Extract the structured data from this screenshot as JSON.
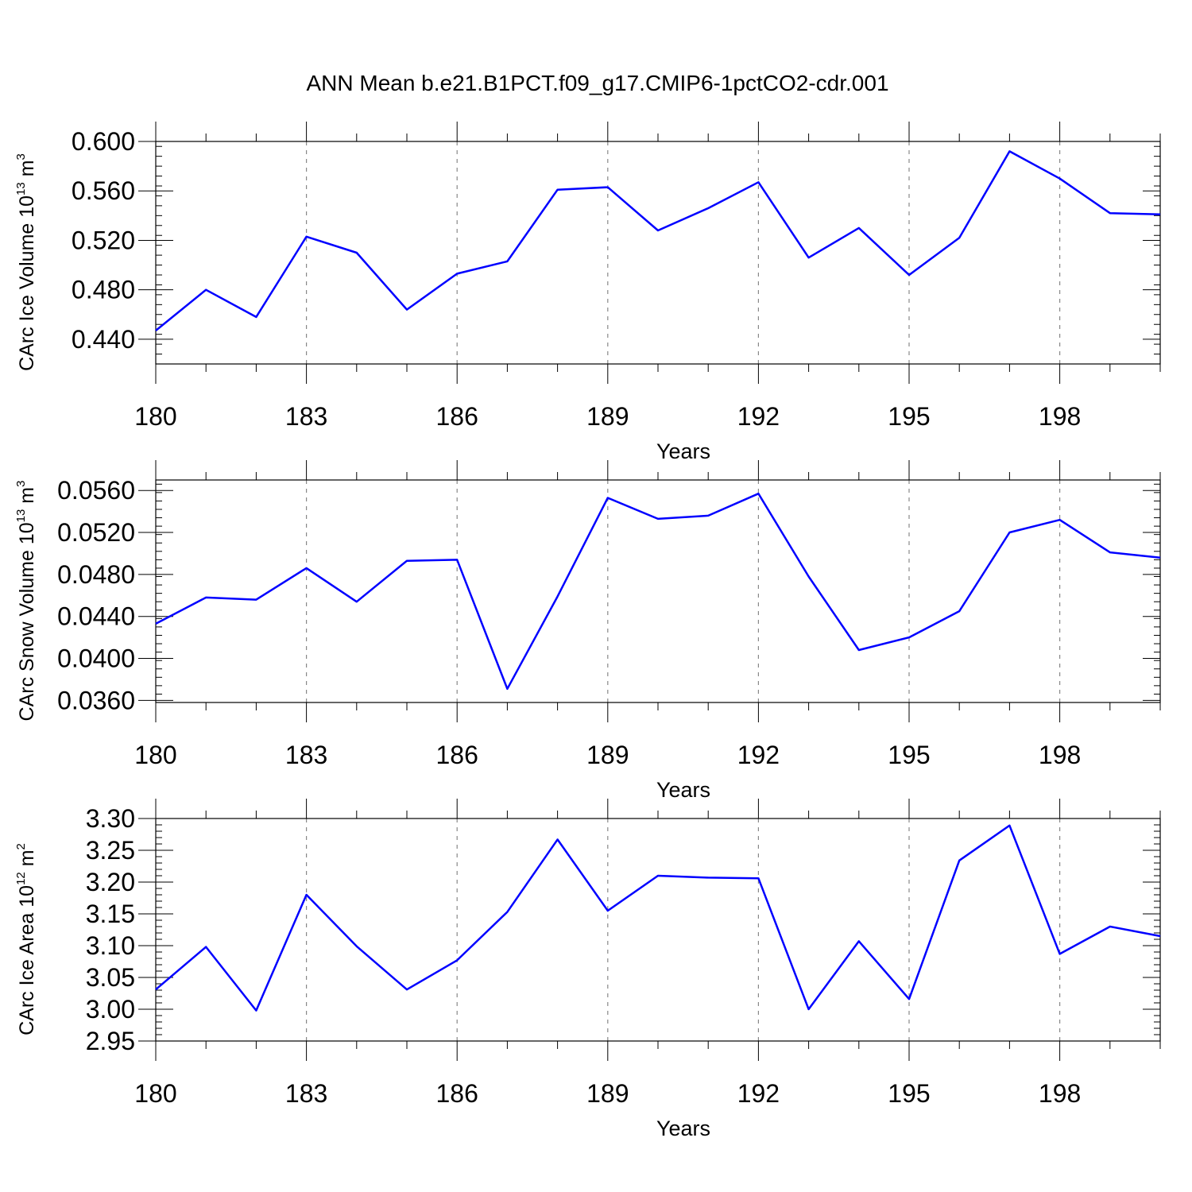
{
  "title": "ANN Mean b.e21.B1PCT.f09_g17.CMIP6-1pctCO2-cdr.001",
  "colors": {
    "series": "#0000ff",
    "grid": "#888888"
  },
  "chart_data": [
    {
      "type": "line",
      "xlabel": "Years",
      "ylabel": {
        "main": "CArc Ice Volume 10",
        "sup1": "13",
        "mid": " m",
        "sup2": "3"
      },
      "xlim": [
        180,
        200
      ],
      "ylim": [
        0.42,
        0.6
      ],
      "yticks": [
        0.44,
        0.48,
        0.52,
        0.56,
        0.6
      ],
      "ytick_labels": [
        "0.440",
        "0.480",
        "0.520",
        "0.560",
        "0.600"
      ],
      "y_minor_step": 0.008,
      "xticks": [
        180,
        183,
        186,
        189,
        192,
        195,
        198
      ],
      "xtick_labels": [
        "180",
        "183",
        "186",
        "189",
        "192",
        "195",
        "198"
      ],
      "grid": "vertical-dashed-at-major-x",
      "series": [
        {
          "x": [
            180,
            181,
            182,
            183,
            184,
            185,
            186,
            187,
            188,
            189,
            190,
            191,
            192,
            193,
            194,
            195,
            196,
            197,
            198,
            199,
            200
          ],
          "values": [
            0.447,
            0.48,
            0.458,
            0.523,
            0.51,
            0.464,
            0.493,
            0.503,
            0.561,
            0.563,
            0.528,
            0.546,
            0.567,
            0.506,
            0.53,
            0.492,
            0.522,
            0.592,
            0.57,
            0.542,
            0.541
          ]
        }
      ]
    },
    {
      "type": "line",
      "xlabel": "Years",
      "ylabel": {
        "main": "CArc Snow Volume 10",
        "sup1": "13",
        "mid": " m",
        "sup2": "3"
      },
      "xlim": [
        180,
        200
      ],
      "ylim": [
        0.0358,
        0.057
      ],
      "yticks": [
        0.036,
        0.04,
        0.044,
        0.048,
        0.052,
        0.056
      ],
      "ytick_labels": [
        "0.0360",
        "0.0400",
        "0.0440",
        "0.0480",
        "0.0520",
        "0.0560"
      ],
      "y_minor_step": 0.0008,
      "xticks": [
        180,
        183,
        186,
        189,
        192,
        195,
        198
      ],
      "xtick_labels": [
        "180",
        "183",
        "186",
        "189",
        "192",
        "195",
        "198"
      ],
      "grid": "vertical-dashed-at-major-x",
      "series": [
        {
          "x": [
            180,
            181,
            182,
            183,
            184,
            185,
            186,
            187,
            188,
            189,
            190,
            191,
            192,
            193,
            194,
            195,
            196,
            197,
            198,
            199,
            200
          ],
          "values": [
            0.0433,
            0.0458,
            0.0456,
            0.0486,
            0.0454,
            0.0493,
            0.0494,
            0.0371,
            0.0459,
            0.0553,
            0.0533,
            0.0536,
            0.0557,
            0.0478,
            0.0408,
            0.042,
            0.0445,
            0.052,
            0.0532,
            0.0501,
            0.0496
          ]
        }
      ]
    },
    {
      "type": "line",
      "xlabel": "Years",
      "ylabel": {
        "main": "CArc Ice Area 10",
        "sup1": "12",
        "mid": " m",
        "sup2": "2"
      },
      "xlim": [
        180,
        200
      ],
      "ylim": [
        2.95,
        3.3
      ],
      "yticks": [
        2.95,
        3.0,
        3.05,
        3.1,
        3.15,
        3.2,
        3.25,
        3.3
      ],
      "ytick_labels": [
        "2.95",
        "3.00",
        "3.05",
        "3.10",
        "3.15",
        "3.20",
        "3.25",
        "3.30"
      ],
      "y_minor_step": 0.01,
      "xticks": [
        180,
        183,
        186,
        189,
        192,
        195,
        198
      ],
      "xtick_labels": [
        "180",
        "183",
        "186",
        "189",
        "192",
        "195",
        "198"
      ],
      "grid": "vertical-dashed-at-major-x",
      "series": [
        {
          "x": [
            180,
            181,
            182,
            183,
            184,
            185,
            186,
            187,
            188,
            189,
            190,
            191,
            192,
            193,
            194,
            195,
            196,
            197,
            198,
            199,
            200
          ],
          "values": [
            3.031,
            3.098,
            2.998,
            3.18,
            3.099,
            3.031,
            3.077,
            3.153,
            3.267,
            3.155,
            3.21,
            3.207,
            3.206,
            3.0,
            3.107,
            3.016,
            3.234,
            3.289,
            3.087,
            3.13,
            3.115
          ]
        }
      ]
    }
  ]
}
